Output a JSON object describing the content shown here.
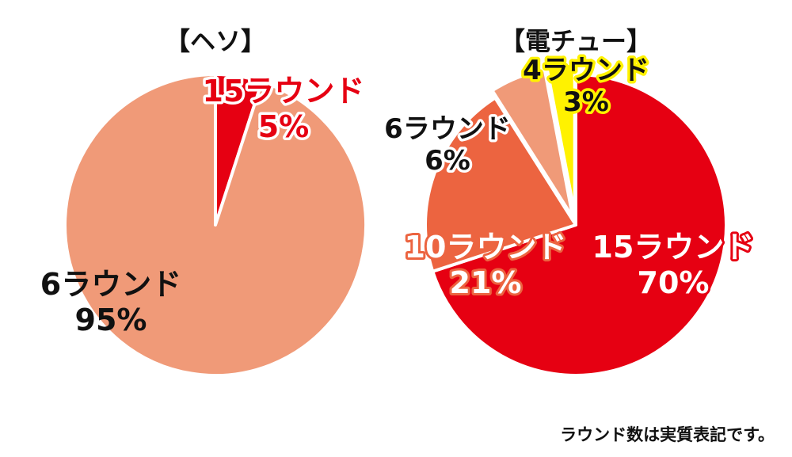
{
  "colors": {
    "salmon": "#f09a78",
    "red": "#e60012",
    "orange": "#ec6440",
    "yellow": "#fff200",
    "white": "#ffffff",
    "black": "#111111"
  },
  "footnote": "ラウンド数は実質表記です。",
  "chart_data": [
    {
      "type": "pie",
      "title": "【ヘソ】",
      "slices": [
        {
          "label": "15ラウンド",
          "value": 5,
          "value_label": "5%",
          "color": "#e60012"
        },
        {
          "label": "6ラウンド",
          "value": 95,
          "value_label": "95%",
          "color": "#f09a78"
        }
      ]
    },
    {
      "type": "pie",
      "title": "【電チュー】",
      "slices": [
        {
          "label": "15ラウンド",
          "value": 70,
          "value_label": "70%",
          "color": "#e60012"
        },
        {
          "label": "10ラウンド",
          "value": 21,
          "value_label": "21%",
          "color": "#ec6440"
        },
        {
          "label": "6ラウンド",
          "value": 6,
          "value_label": "6%",
          "color": "#f09a78"
        },
        {
          "label": "4ラウンド",
          "value": 3,
          "value_label": "3%",
          "color": "#fff200"
        }
      ]
    }
  ]
}
